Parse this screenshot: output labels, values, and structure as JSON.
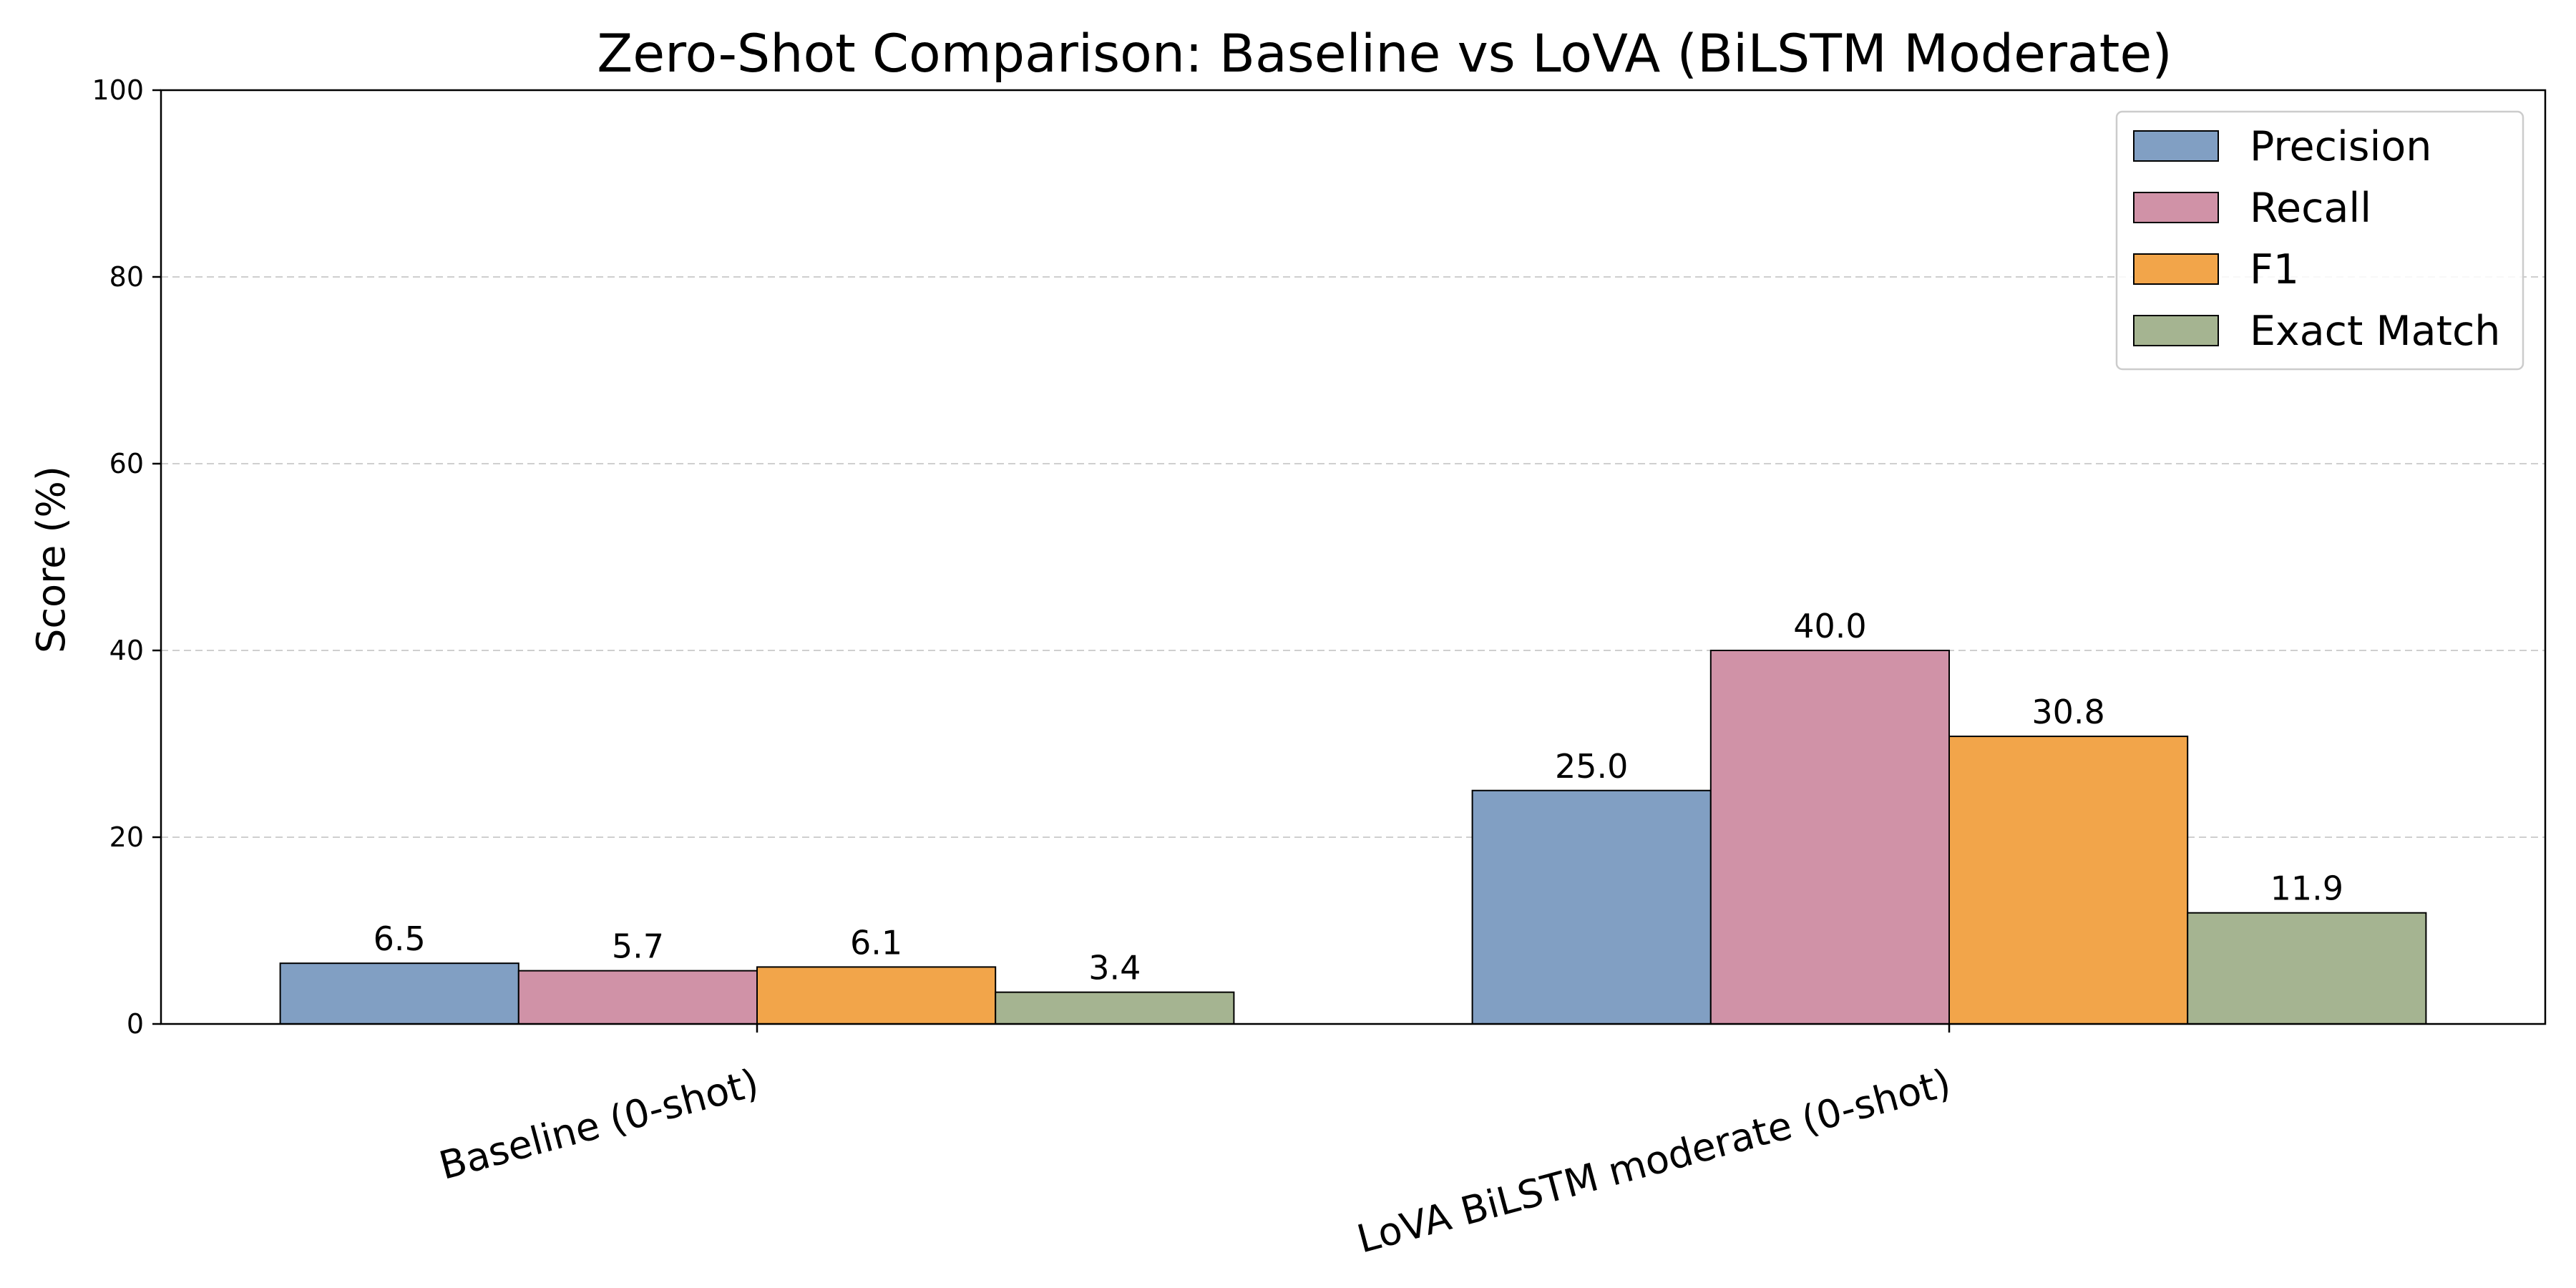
{
  "chart_data": {
    "type": "bar",
    "title": "Zero-Shot Comparison: Baseline vs LoVA (BiLSTM Moderate)",
    "xlabel": "",
    "ylabel": "Score (%)",
    "ylim": [
      0,
      100
    ],
    "yticks": [
      0,
      20,
      40,
      60,
      80,
      100
    ],
    "grid": "y-dashed",
    "legend_position": "top-right",
    "categories": [
      "Baseline (0-shot)",
      "LoVA BiLSTM moderate (0-shot)"
    ],
    "series": [
      {
        "name": "Precision",
        "color": "#819fc3",
        "values": [
          6.5,
          25.0
        ]
      },
      {
        "name": "Recall",
        "color": "#d092a7",
        "values": [
          5.7,
          40.0
        ]
      },
      {
        "name": "F1",
        "color": "#f2a54a",
        "values": [
          6.1,
          30.8
        ]
      },
      {
        "name": "Exact Match",
        "color": "#a5b491",
        "values": [
          3.4,
          11.9
        ]
      }
    ]
  }
}
